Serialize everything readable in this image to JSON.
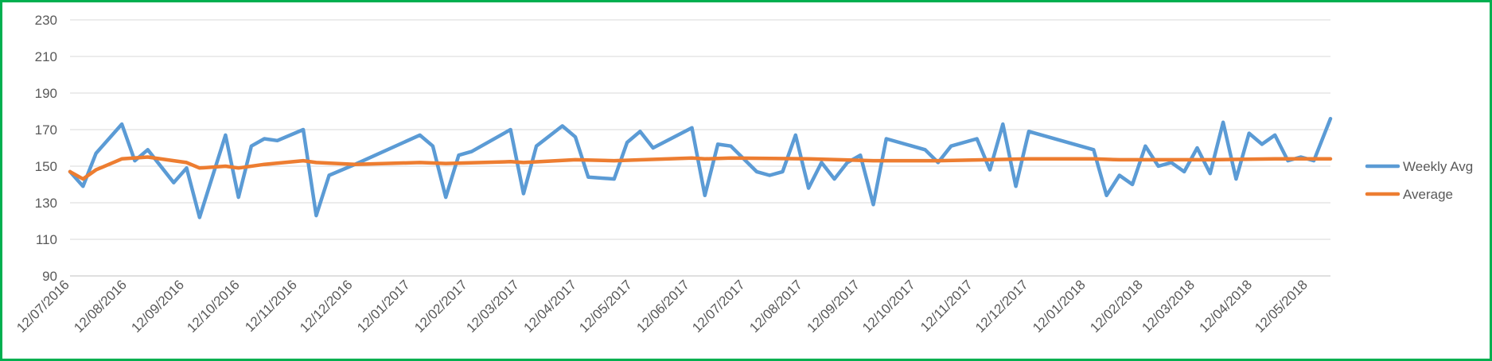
{
  "chart_data": {
    "type": "line",
    "title": "",
    "xlabel": "",
    "ylabel": "",
    "ylim": [
      90,
      230
    ],
    "yticks": [
      90,
      110,
      130,
      150,
      170,
      190,
      210,
      230
    ],
    "grid": "horizontal",
    "legend_position": "right",
    "x_start": "2016-07-12",
    "x_end": "2018-05-24",
    "xticks": [
      {
        "date": "2016-07-12",
        "label": "12/07/2016"
      },
      {
        "date": "2016-08-12",
        "label": "12/08/2016"
      },
      {
        "date": "2016-09-12",
        "label": "12/09/2016"
      },
      {
        "date": "2016-10-12",
        "label": "12/10/2016"
      },
      {
        "date": "2016-11-12",
        "label": "12/11/2016"
      },
      {
        "date": "2016-12-12",
        "label": "12/12/2016"
      },
      {
        "date": "2017-01-12",
        "label": "12/01/2017"
      },
      {
        "date": "2017-02-12",
        "label": "12/02/2017"
      },
      {
        "date": "2017-03-12",
        "label": "12/03/2017"
      },
      {
        "date": "2017-04-12",
        "label": "12/04/2017"
      },
      {
        "date": "2017-05-12",
        "label": "12/05/2017"
      },
      {
        "date": "2017-06-12",
        "label": "12/06/2017"
      },
      {
        "date": "2017-07-12",
        "label": "12/07/2017"
      },
      {
        "date": "2017-08-12",
        "label": "12/08/2017"
      },
      {
        "date": "2017-09-12",
        "label": "12/09/2017"
      },
      {
        "date": "2017-10-12",
        "label": "12/10/2017"
      },
      {
        "date": "2017-11-12",
        "label": "12/11/2017"
      },
      {
        "date": "2017-12-12",
        "label": "12/12/2017"
      },
      {
        "date": "2018-01-12",
        "label": "12/01/2018"
      },
      {
        "date": "2018-02-12",
        "label": "12/02/2018"
      },
      {
        "date": "2018-03-12",
        "label": "12/03/2018"
      },
      {
        "date": "2018-04-12",
        "label": "12/04/2018"
      },
      {
        "date": "2018-05-12",
        "label": "12/05/2018"
      }
    ],
    "series": [
      {
        "name": "Weekly Avg",
        "color": "#5b9bd5",
        "points": [
          {
            "x": "2016-07-12",
            "y": 147
          },
          {
            "x": "2016-07-19",
            "y": 139
          },
          {
            "x": "2016-07-26",
            "y": 157
          },
          {
            "x": "2016-08-09",
            "y": 173
          },
          {
            "x": "2016-08-16",
            "y": 153
          },
          {
            "x": "2016-08-23",
            "y": 159
          },
          {
            "x": "2016-09-06",
            "y": 141
          },
          {
            "x": "2016-09-13",
            "y": 149
          },
          {
            "x": "2016-09-20",
            "y": 122
          },
          {
            "x": "2016-10-04",
            "y": 167
          },
          {
            "x": "2016-10-11",
            "y": 133
          },
          {
            "x": "2016-10-18",
            "y": 161
          },
          {
            "x": "2016-10-25",
            "y": 165
          },
          {
            "x": "2016-11-01",
            "y": 164
          },
          {
            "x": "2016-11-15",
            "y": 170
          },
          {
            "x": "2016-11-22",
            "y": 123
          },
          {
            "x": "2016-11-29",
            "y": 145
          },
          {
            "x": "2016-12-13",
            "y": 151
          },
          {
            "x": "2017-01-17",
            "y": 167
          },
          {
            "x": "2017-01-24",
            "y": 161
          },
          {
            "x": "2017-01-31",
            "y": 133
          },
          {
            "x": "2017-02-07",
            "y": 156
          },
          {
            "x": "2017-02-14",
            "y": 158
          },
          {
            "x": "2017-03-07",
            "y": 170
          },
          {
            "x": "2017-03-14",
            "y": 135
          },
          {
            "x": "2017-03-21",
            "y": 161
          },
          {
            "x": "2017-04-04",
            "y": 172
          },
          {
            "x": "2017-04-11",
            "y": 166
          },
          {
            "x": "2017-04-18",
            "y": 144
          },
          {
            "x": "2017-05-02",
            "y": 143
          },
          {
            "x": "2017-05-09",
            "y": 163
          },
          {
            "x": "2017-05-16",
            "y": 169
          },
          {
            "x": "2017-05-23",
            "y": 160
          },
          {
            "x": "2017-06-13",
            "y": 171
          },
          {
            "x": "2017-06-20",
            "y": 134
          },
          {
            "x": "2017-06-27",
            "y": 162
          },
          {
            "x": "2017-07-04",
            "y": 161
          },
          {
            "x": "2017-07-18",
            "y": 147
          },
          {
            "x": "2017-07-25",
            "y": 145
          },
          {
            "x": "2017-08-01",
            "y": 147
          },
          {
            "x": "2017-08-08",
            "y": 167
          },
          {
            "x": "2017-08-15",
            "y": 138
          },
          {
            "x": "2017-08-22",
            "y": 152
          },
          {
            "x": "2017-08-29",
            "y": 143
          },
          {
            "x": "2017-09-05",
            "y": 152
          },
          {
            "x": "2017-09-12",
            "y": 156
          },
          {
            "x": "2017-09-19",
            "y": 129
          },
          {
            "x": "2017-09-26",
            "y": 165
          },
          {
            "x": "2017-10-17",
            "y": 159
          },
          {
            "x": "2017-10-24",
            "y": 152
          },
          {
            "x": "2017-10-31",
            "y": 161
          },
          {
            "x": "2017-11-14",
            "y": 165
          },
          {
            "x": "2017-11-21",
            "y": 148
          },
          {
            "x": "2017-11-28",
            "y": 173
          },
          {
            "x": "2017-12-05",
            "y": 139
          },
          {
            "x": "2017-12-12",
            "y": 169
          },
          {
            "x": "2018-01-16",
            "y": 159
          },
          {
            "x": "2018-01-23",
            "y": 134
          },
          {
            "x": "2018-01-30",
            "y": 145
          },
          {
            "x": "2018-02-06",
            "y": 140
          },
          {
            "x": "2018-02-13",
            "y": 161
          },
          {
            "x": "2018-02-20",
            "y": 150
          },
          {
            "x": "2018-02-27",
            "y": 152
          },
          {
            "x": "2018-03-06",
            "y": 147
          },
          {
            "x": "2018-03-13",
            "y": 160
          },
          {
            "x": "2018-03-20",
            "y": 146
          },
          {
            "x": "2018-03-27",
            "y": 174
          },
          {
            "x": "2018-04-03",
            "y": 143
          },
          {
            "x": "2018-04-10",
            "y": 168
          },
          {
            "x": "2018-04-17",
            "y": 162
          },
          {
            "x": "2018-04-24",
            "y": 167
          },
          {
            "x": "2018-05-01",
            "y": 153
          },
          {
            "x": "2018-05-08",
            "y": 155
          },
          {
            "x": "2018-05-15",
            "y": 153
          },
          {
            "x": "2018-05-24",
            "y": 176
          }
        ]
      },
      {
        "name": "Average",
        "color": "#ed7d31",
        "points": [
          {
            "x": "2016-07-12",
            "y": 147
          },
          {
            "x": "2016-07-19",
            "y": 143
          },
          {
            "x": "2016-07-26",
            "y": 148
          },
          {
            "x": "2016-08-09",
            "y": 154
          },
          {
            "x": "2016-08-23",
            "y": 155
          },
          {
            "x": "2016-09-06",
            "y": 153
          },
          {
            "x": "2016-09-13",
            "y": 152
          },
          {
            "x": "2016-09-20",
            "y": 149
          },
          {
            "x": "2016-10-04",
            "y": 150
          },
          {
            "x": "2016-10-11",
            "y": 149
          },
          {
            "x": "2016-10-25",
            "y": 151
          },
          {
            "x": "2016-11-15",
            "y": 153
          },
          {
            "x": "2016-11-22",
            "y": 152
          },
          {
            "x": "2016-12-13",
            "y": 151
          },
          {
            "x": "2017-01-17",
            "y": 152
          },
          {
            "x": "2017-01-31",
            "y": 151.5
          },
          {
            "x": "2017-03-07",
            "y": 152.5
          },
          {
            "x": "2017-03-14",
            "y": 152
          },
          {
            "x": "2017-04-11",
            "y": 153.5
          },
          {
            "x": "2017-05-02",
            "y": 153
          },
          {
            "x": "2017-06-13",
            "y": 154.5
          },
          {
            "x": "2017-06-20",
            "y": 154
          },
          {
            "x": "2017-07-04",
            "y": 154.5
          },
          {
            "x": "2017-08-15",
            "y": 154
          },
          {
            "x": "2017-09-19",
            "y": 153
          },
          {
            "x": "2017-10-24",
            "y": 153
          },
          {
            "x": "2017-12-12",
            "y": 154
          },
          {
            "x": "2018-01-16",
            "y": 154
          },
          {
            "x": "2018-01-30",
            "y": 153.5
          },
          {
            "x": "2018-03-20",
            "y": 153.5
          },
          {
            "x": "2018-04-24",
            "y": 154
          },
          {
            "x": "2018-05-24",
            "y": 154
          }
        ]
      }
    ]
  }
}
